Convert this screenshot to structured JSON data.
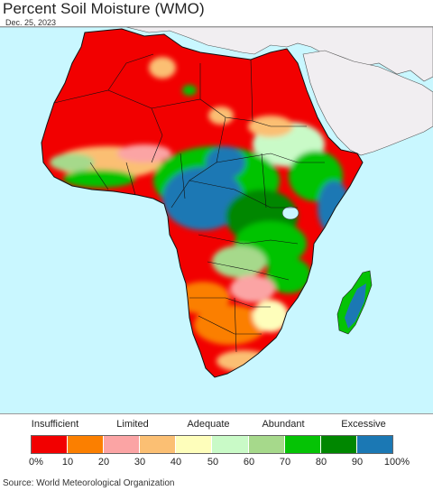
{
  "title": "Percent Soil Moisture (WMO)",
  "date": "Dec. 25, 2023",
  "legend": {
    "categories": [
      "Insufficient",
      "Limited",
      "Adequate",
      "Abundant",
      "Excessive"
    ],
    "ticks": [
      "0%",
      "10",
      "20",
      "30",
      "40",
      "50",
      "60",
      "70",
      "80",
      "90",
      "100%"
    ],
    "colors": [
      "#f20000",
      "#fb7f00",
      "#fba4a4",
      "#fbbf73",
      "#fefebb",
      "#c9fac7",
      "#a6d98b",
      "#05c305",
      "#008700",
      "#1b78b4"
    ]
  },
  "map": {
    "ocean_color": "#c9f7ff",
    "land_outside_color": "#f1eef1",
    "border_color": "#000000"
  },
  "source": "Source: World Meteorological Organization"
}
